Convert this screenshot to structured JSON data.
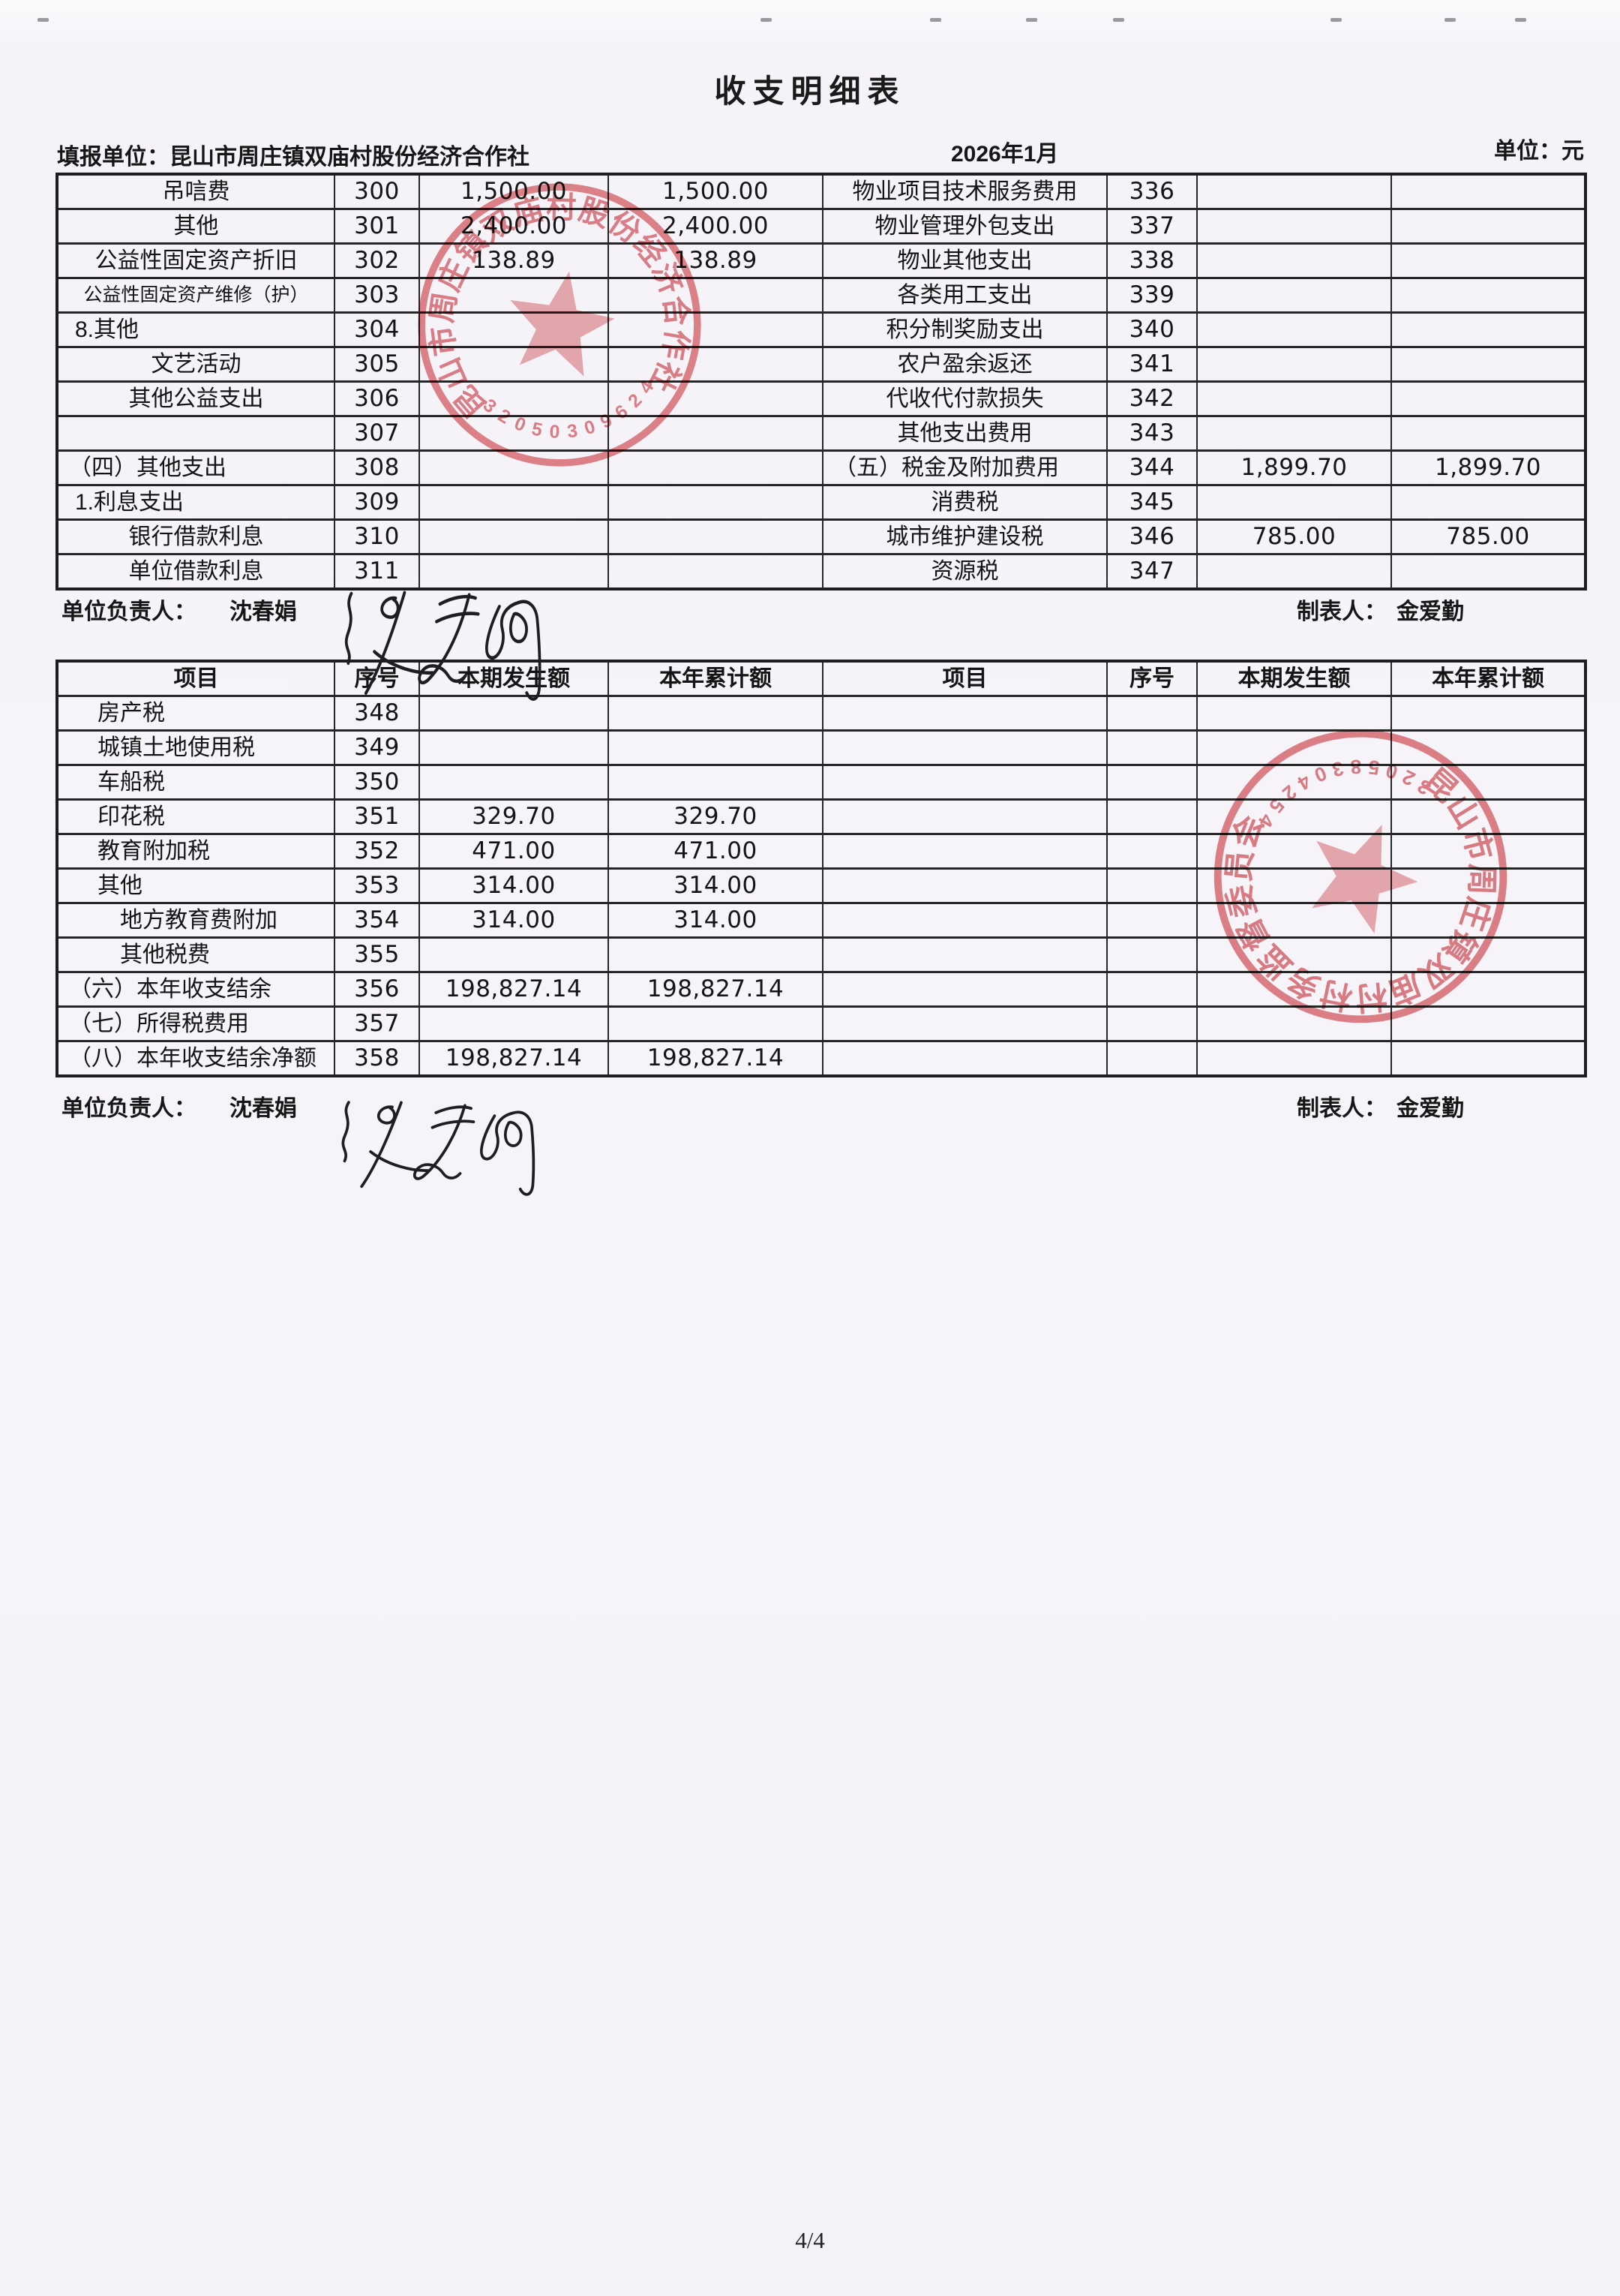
{
  "page": {
    "title": "收支明细表",
    "filing_unit_label": "填报单位：",
    "filing_unit": "昆山市周庄镇双庙村股份经济合作社",
    "period": "2026年1月",
    "unit_label": "单位：元",
    "page_number": "4/4"
  },
  "table1": {
    "rows": [
      [
        "吊唁费",
        "300",
        "1,500.00",
        "1,500.00",
        "物业项目技术服务费用",
        "336",
        "",
        ""
      ],
      [
        "其他",
        "301",
        "2,400.00",
        "2,400.00",
        "物业管理外包支出",
        "337",
        "",
        ""
      ],
      [
        "公益性固定资产折旧",
        "302",
        "138.89",
        "138.89",
        "物业其他支出",
        "338",
        "",
        ""
      ],
      [
        "公益性固定资产维修（护）",
        "303",
        "",
        "",
        "各类用工支出",
        "339",
        "",
        ""
      ],
      [
        "8.其他",
        "304",
        "",
        "",
        "积分制奖励支出",
        "340",
        "",
        ""
      ],
      [
        "文艺活动",
        "305",
        "",
        "",
        "农户盈余返还",
        "341",
        "",
        ""
      ],
      [
        "其他公益支出",
        "306",
        "",
        "",
        "代收代付款损失",
        "342",
        "",
        ""
      ],
      [
        "",
        "307",
        "",
        "",
        "其他支出费用",
        "343",
        "",
        ""
      ],
      [
        "（四）其他支出",
        "308",
        "",
        "",
        "（五）税金及附加费用",
        "344",
        "1,899.70",
        "1,899.70"
      ],
      [
        "1.利息支出",
        "309",
        "",
        "",
        "消费税",
        "345",
        "",
        ""
      ],
      [
        "银行借款利息",
        "310",
        "",
        "",
        "城市维护建设税",
        "346",
        "785.00",
        "785.00"
      ],
      [
        "单位借款利息",
        "311",
        "",
        "",
        "资源税",
        "347",
        "",
        ""
      ]
    ]
  },
  "table2": {
    "headers": [
      "项目",
      "序号",
      "本期发生额",
      "本年累计额",
      "项目",
      "序号",
      "本期发生额",
      "本年累计额"
    ],
    "rows": [
      [
        "房产税",
        "348",
        "",
        "",
        "",
        "",
        "",
        ""
      ],
      [
        "城镇土地使用税",
        "349",
        "",
        "",
        "",
        "",
        "",
        ""
      ],
      [
        "车船税",
        "350",
        "",
        "",
        "",
        "",
        "",
        ""
      ],
      [
        "印花税",
        "351",
        "329.70",
        "329.70",
        "",
        "",
        "",
        ""
      ],
      [
        "教育附加税",
        "352",
        "471.00",
        "471.00",
        "",
        "",
        "",
        ""
      ],
      [
        "其他",
        "353",
        "314.00",
        "314.00",
        "",
        "",
        "",
        ""
      ],
      [
        "　地方教育费附加",
        "354",
        "314.00",
        "314.00",
        "",
        "",
        "",
        ""
      ],
      [
        "　其他税费",
        "355",
        "",
        "",
        "",
        "",
        "",
        ""
      ],
      [
        "（六）本年收支结余",
        "356",
        "198,827.14",
        "198,827.14",
        "",
        "",
        "",
        ""
      ],
      [
        "（七）所得税费用",
        "357",
        "",
        "",
        "",
        "",
        "",
        ""
      ],
      [
        "（八）本年收支结余净额",
        "358",
        "198,827.14",
        "198,827.14",
        "",
        "",
        "",
        ""
      ]
    ]
  },
  "signoff": {
    "responsible_label": "单位负责人：",
    "responsible_name": "沈春娟",
    "preparer_label": "制表人：",
    "preparer_name": "金爱勤"
  },
  "stamps": {
    "stamp1": {
      "org_text": "昆山市周庄镇双庙村股份经济合作社",
      "code": "3205030962402",
      "color": "#d9575e"
    },
    "stamp2": {
      "org_text": "昆山市周庄镇双庙村村务监督委员会",
      "code": "3205830425431",
      "color": "#d9575e"
    }
  }
}
